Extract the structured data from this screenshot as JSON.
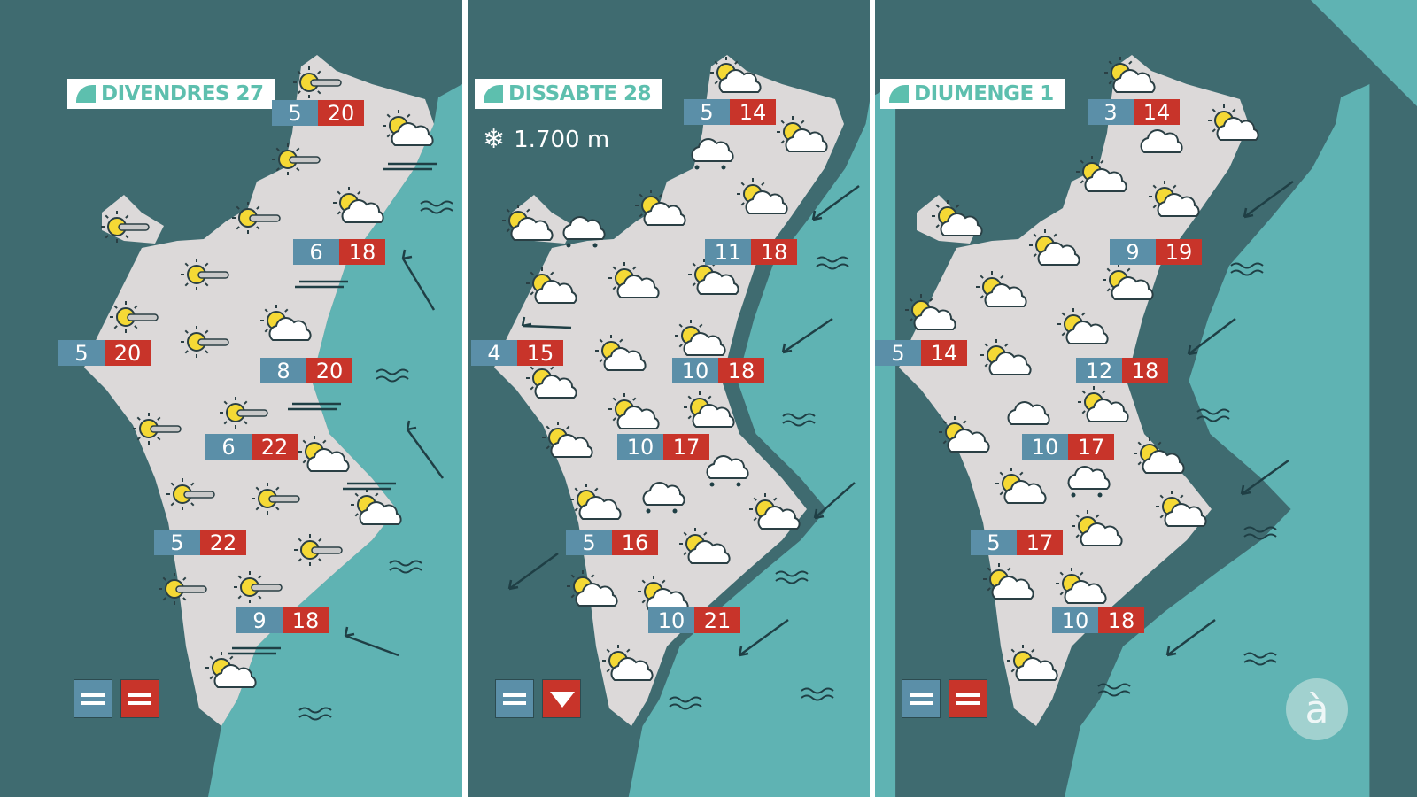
{
  "colors": {
    "background": "#3f6b70",
    "sea": "#5fb3b3",
    "land": "#dcd9d9",
    "min_box": "#5b8fa8",
    "max_box": "#c8342a",
    "title_text": "#5dbfae"
  },
  "panels": [
    {
      "day": "DIVENDRES 27",
      "temps": [
        {
          "min": "5",
          "max": "20"
        },
        {
          "min": "6",
          "max": "18"
        },
        {
          "min": "5",
          "max": "20"
        },
        {
          "min": "8",
          "max": "20"
        },
        {
          "min": "6",
          "max": "22"
        },
        {
          "min": "5",
          "max": "22"
        },
        {
          "min": "9",
          "max": "18"
        }
      ],
      "icons": [
        "sun-fog",
        "sun-cloud",
        "sun-fog",
        "sun-cloud",
        "sun-fog",
        "sun-fog",
        "sun-fog",
        "sun-fog",
        "sun-fog",
        "sun-cloud",
        "sun-fog",
        "sun-fog",
        "sun-cloud",
        "sun-fog",
        "sun-fog",
        "sun-cloud",
        "sun-fog",
        "sun-fog",
        "sun-fog",
        "sun-cloud"
      ],
      "trend": [
        "equal",
        "equal"
      ]
    },
    {
      "day": "DISSABTE 28",
      "snow_level": "1.700 m",
      "temps": [
        {
          "min": "5",
          "max": "14"
        },
        {
          "min": "11",
          "max": "18"
        },
        {
          "min": "4",
          "max": "15"
        },
        {
          "min": "10",
          "max": "18"
        },
        {
          "min": "10",
          "max": "17"
        },
        {
          "min": "5",
          "max": "16"
        },
        {
          "min": "10",
          "max": "21"
        }
      ],
      "icons": [
        "sun-cloud",
        "sun-cloud",
        "rain",
        "sun-cloud",
        "sun-cloud",
        "sun-cloud",
        "rain",
        "sun-cloud",
        "sun-cloud",
        "sun-cloud",
        "sun-cloud",
        "sun-cloud",
        "sun-cloud",
        "sun-cloud",
        "sun-cloud",
        "sun-cloud",
        "rain",
        "rain",
        "sun-cloud",
        "sun-cloud",
        "sun-cloud",
        "sun-cloud",
        "sun-cloud",
        "sun-cloud"
      ],
      "trend": [
        "equal",
        "down"
      ]
    },
    {
      "day": "DIUMENGE 1",
      "temps": [
        {
          "min": "3",
          "max": "14"
        },
        {
          "min": "9",
          "max": "19"
        },
        {
          "min": "5",
          "max": "14"
        },
        {
          "min": "12",
          "max": "18"
        },
        {
          "min": "10",
          "max": "17"
        },
        {
          "min": "5",
          "max": "17"
        },
        {
          "min": "10",
          "max": "18"
        }
      ],
      "icons": [
        "sun-cloud",
        "sun-cloud",
        "cloud",
        "sun-cloud",
        "sun-cloud",
        "sun-cloud",
        "sun-cloud",
        "sun-cloud",
        "sun-cloud",
        "sun-cloud",
        "sun-cloud",
        "sun-cloud",
        "cloud",
        "sun-cloud",
        "sun-cloud",
        "rain",
        "sun-cloud",
        "sun-cloud",
        "sun-cloud",
        "sun-cloud",
        "sun-cloud",
        "sun-cloud",
        "sun-cloud"
      ],
      "trend": [
        "equal",
        "equal"
      ]
    }
  ],
  "logo": "à"
}
